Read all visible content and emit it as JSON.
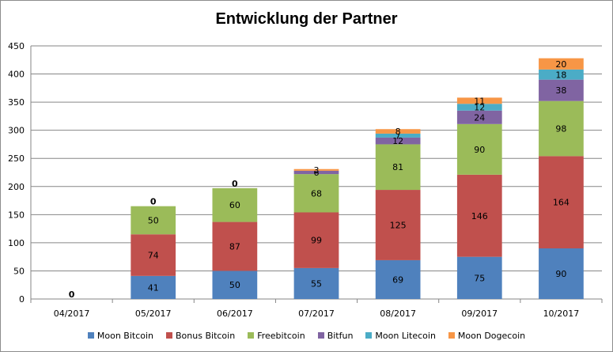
{
  "chart_data": {
    "type": "bar",
    "stacked": true,
    "title": "Entwicklung der Partner",
    "xlabel": "",
    "ylabel": "",
    "ylim": [
      0,
      450
    ],
    "yticks": [
      "0",
      "50",
      "100",
      "150",
      "200",
      "250",
      "300",
      "350",
      "400",
      "450"
    ],
    "grid": true,
    "legend_position": "bottom",
    "categories": [
      "04/2017",
      "05/2017",
      "06/2017",
      "07/2017",
      "08/2017",
      "09/2017",
      "10/2017"
    ],
    "series": [
      {
        "name": "Moon Bitcoin",
        "color": "#4f81bd",
        "values": [
          0,
          41,
          50,
          55,
          69,
          75,
          90
        ]
      },
      {
        "name": "Bonus Bitcoin",
        "color": "#c0504d",
        "values": [
          0,
          74,
          87,
          99,
          125,
          146,
          164
        ]
      },
      {
        "name": "Freebitcoin",
        "color": "#9bbb59",
        "values": [
          0,
          50,
          60,
          68,
          81,
          90,
          98
        ]
      },
      {
        "name": "Bitfun",
        "color": "#8064a2",
        "values": [
          0,
          0,
          0,
          6,
          12,
          24,
          38
        ]
      },
      {
        "name": "Moon Litecoin",
        "color": "#4bacc6",
        "values": [
          0,
          0,
          0,
          0,
          7,
          12,
          18
        ]
      },
      {
        "name": "Moon Dogecoin",
        "color": "#f79646",
        "values": [
          0,
          0,
          0,
          3,
          8,
          11,
          20
        ]
      }
    ],
    "zero_labels": [
      {
        "category": "04/2017",
        "text": "0"
      },
      {
        "category": "05/2017",
        "text": "0"
      },
      {
        "category": "06/2017",
        "text": "0"
      }
    ]
  }
}
